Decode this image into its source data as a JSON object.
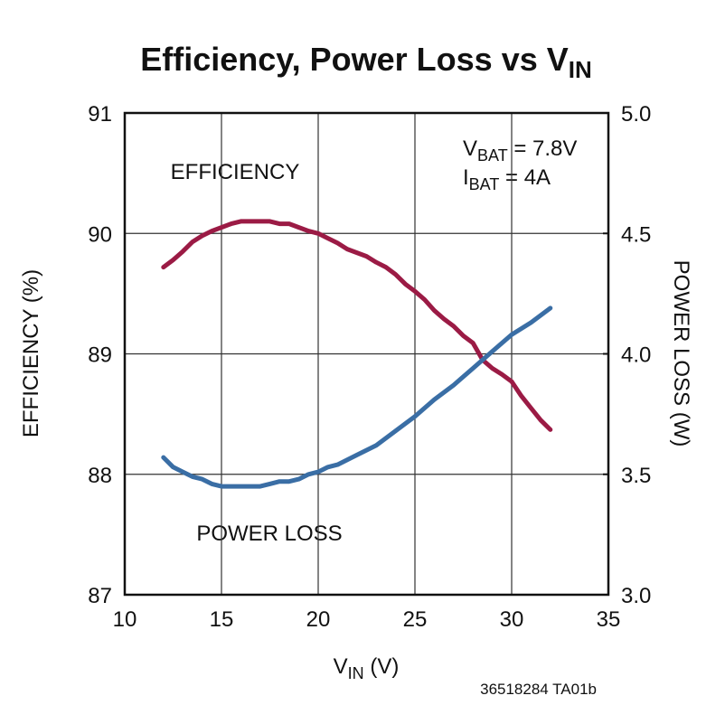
{
  "chart_data": {
    "type": "line",
    "title": {
      "text": "Efficiency, Power Loss vs V",
      "sub": "IN"
    },
    "x_label": {
      "text": "V",
      "sub": "IN",
      "suffix": " (V)"
    },
    "y_label": "EFFICIENCY (%)",
    "y2_label": "POWER LOSS (W)",
    "annotations": [
      {
        "text": "V",
        "sub": "BAT",
        "suffix": " = 7.8V"
      },
      {
        "text": "I",
        "sub": "BAT",
        "suffix": " = 4A"
      }
    ],
    "series_labels": [
      "EFFICIENCY",
      "POWER LOSS"
    ],
    "footnote": "36518284 TA01b",
    "xlim": [
      10,
      35
    ],
    "xticks": [
      10,
      15,
      20,
      25,
      30,
      35
    ],
    "ylim": [
      87,
      91
    ],
    "yticks": [
      87,
      88,
      89,
      90,
      91
    ],
    "y2lim": [
      3,
      5
    ],
    "y2ticks": [
      {
        "value": 3,
        "label": "3.0"
      },
      3.5,
      {
        "value": 4,
        "label": "4.0"
      },
      4.5,
      {
        "value": 5,
        "label": "5.0"
      }
    ],
    "grid": true,
    "series": [
      {
        "name": "EFFICIENCY",
        "color": "#9b1b45",
        "x": [
          12,
          12.5,
          13,
          13.5,
          14,
          14.5,
          15,
          15.5,
          16,
          17,
          17.5,
          18,
          18.5,
          19,
          19.5,
          20,
          20.5,
          21,
          21.5,
          22,
          22.5,
          23,
          23.5,
          24,
          24.5,
          25,
          25.5,
          26,
          26.5,
          27,
          27.5,
          28,
          28.5,
          29,
          29.5,
          30,
          30.5,
          31,
          31.5,
          32
        ],
        "values": [
          89.72,
          89.78,
          89.85,
          89.93,
          89.98,
          90.02,
          90.05,
          90.08,
          90.1,
          90.1,
          90.1,
          90.08,
          90.08,
          90.05,
          90.02,
          90.0,
          89.96,
          89.92,
          89.87,
          89.84,
          89.81,
          89.76,
          89.72,
          89.66,
          89.58,
          89.52,
          89.45,
          89.36,
          89.29,
          89.23,
          89.15,
          89.09,
          88.95,
          88.88,
          88.83,
          88.77,
          88.65,
          88.55,
          88.45,
          88.37
        ]
      },
      {
        "name": "POWER LOSS",
        "color": "#3a6ea5",
        "axis": "y2",
        "x": [
          12,
          12.5,
          13,
          13.5,
          14,
          14.5,
          15,
          16,
          17,
          17.5,
          18,
          18.5,
          19,
          19.5,
          20,
          20.5,
          21,
          22,
          23,
          24,
          25,
          26,
          27,
          28,
          29,
          30,
          31,
          32
        ],
        "values": [
          3.57,
          3.53,
          3.51,
          3.49,
          3.48,
          3.46,
          3.45,
          3.45,
          3.45,
          3.46,
          3.47,
          3.47,
          3.48,
          3.5,
          3.51,
          3.53,
          3.54,
          3.58,
          3.62,
          3.68,
          3.74,
          3.81,
          3.87,
          3.94,
          4.01,
          4.08,
          4.13,
          4.19
        ]
      }
    ]
  }
}
